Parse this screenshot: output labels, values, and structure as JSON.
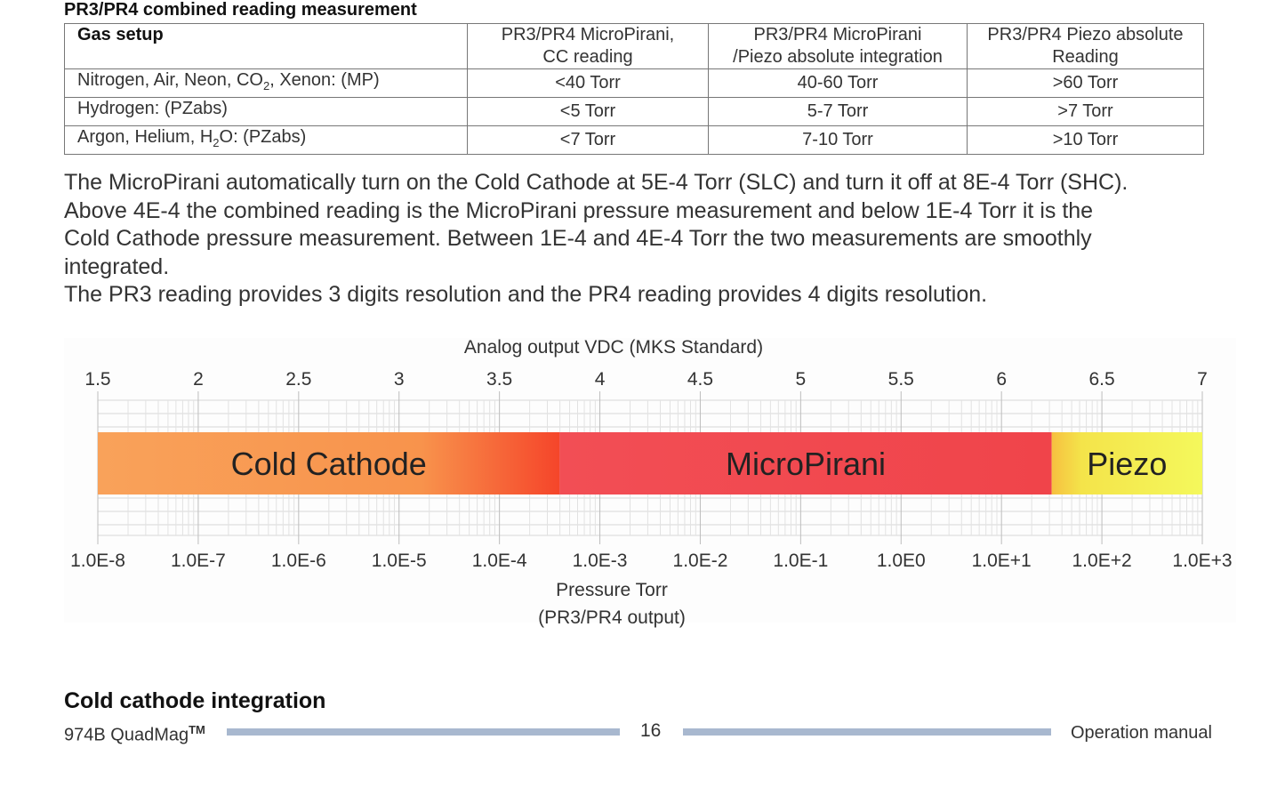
{
  "section": {
    "title": "PR3/PR4 combined reading measurement"
  },
  "table": {
    "headers": [
      [
        "Gas setup"
      ],
      [
        "PR3/PR4 MicroPirani,",
        "CC reading"
      ],
      [
        "PR3/PR4 MicroPirani",
        "/Piezo absolute integration"
      ],
      [
        "PR3/PR4 Piezo absolute",
        "Reading"
      ]
    ],
    "rows": [
      {
        "gas_before": "Nitrogen, Air, Neon, CO",
        "gas_sub": "2",
        "gas_after": ", Xenon: (MP)",
        "cc": "<40 Torr",
        "integration": "40-60 Torr",
        "piezo": ">60 Torr"
      },
      {
        "gas_before": "Hydrogen: (PZabs)",
        "gas_sub": "",
        "gas_after": "",
        "cc": "<5 Torr",
        "integration": "5-7 Torr",
        "piezo": ">7 Torr"
      },
      {
        "gas_before": "Argon, Helium, H",
        "gas_sub": "2",
        "gas_after": "O: (PZabs)",
        "cc": "<7 Torr",
        "integration": "7-10 Torr",
        "piezo": ">10 Torr"
      }
    ]
  },
  "paragraph": {
    "lines": [
      "The MicroPirani automatically turn on the Cold Cathode at 5E-4 Torr (SLC) and turn it off at 8E-4 Torr (SHC).",
      "Above 4E-4 the combined reading is the MicroPirani pressure measurement and below 1E-4 Torr it is the",
      "Cold Cathode pressure measurement. Between 1E-4 and 4E-4 Torr the two measurements are smoothly",
      "integrated.",
      "The PR3 reading provides 3 digits resolution and the PR4 reading provides 4 digits resolution."
    ]
  },
  "chart_data": {
    "type": "bar",
    "title": "Analog output VDC (MKS Standard)",
    "top_axis": {
      "ticks": [
        "1.5",
        "2",
        "2.5",
        "3",
        "3.5",
        "4",
        "4.5",
        "5",
        "5.5",
        "6",
        "6.5",
        "7"
      ],
      "range": [
        1.5,
        7
      ]
    },
    "bottom_axis": {
      "ticks": [
        "1.0E-8",
        "1.0E-7",
        "1.0E-6",
        "1.0E-5",
        "1.0E-4",
        "1.0E-3",
        "1.0E-2",
        "1.0E-1",
        "1.0E0",
        "1.0E+1",
        "1.0E+2",
        "1.0E+3"
      ],
      "exponent_range": [
        -8,
        3
      ],
      "scale": "log",
      "label_line1": "Pressure Torr",
      "label_line2": "(PR3/PR4 output)"
    },
    "grid": true,
    "regions": [
      {
        "name": "Cold Cathode",
        "start_exp": -8,
        "end_exp": -3.4,
        "color_from": "#f8a050",
        "color_to": "#f54a2a"
      },
      {
        "name": "MicroPirani",
        "start_exp": -3.4,
        "end_exp": 1.5,
        "color_from": "#f2525a",
        "color_to": "#f03a40"
      },
      {
        "name": "Piezo",
        "start_exp": 1.5,
        "end_exp": 3,
        "color_from": "#f4e64a",
        "color_to": "#f4f85a"
      }
    ]
  },
  "heading2": "Cold cathode integration",
  "footer": {
    "product": "974B QuadMag",
    "tm": "TM",
    "page": "16",
    "manual": "Operation manual"
  }
}
